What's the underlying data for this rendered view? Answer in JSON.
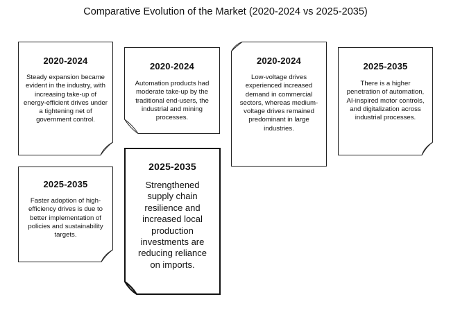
{
  "title": "Comparative Evolution of the Market (2020-2024 vs 2025-2035)",
  "cards": [
    {
      "year": "2020-2024",
      "text": "Steady expansion became evident in the industry, with increasing take-up of energy-efficient drives under a tightening net of government control."
    },
    {
      "year": "2020-2024",
      "text": "Automation products had moderate take-up by the traditional end-users, the industrial and mining processes."
    },
    {
      "year": "2020-2024",
      "text": "Low-voltage drives experienced increased demand in commercial sectors, whereas medium-voltage drives remained predominant in large industries."
    },
    {
      "year": "2025-2035",
      "text": "There is a higher penetration of automation, AI-inspired motor controls, and digitalization across industrial processes."
    },
    {
      "year": "2025-2035",
      "text": "Faster adoption of high-efficiency drives is due to better implementation of policies and sustainability targets."
    },
    {
      "year": "2025-2035",
      "text": "Strengthened supply chain resilience and increased local production investments are reducing reliance on imports."
    }
  ]
}
